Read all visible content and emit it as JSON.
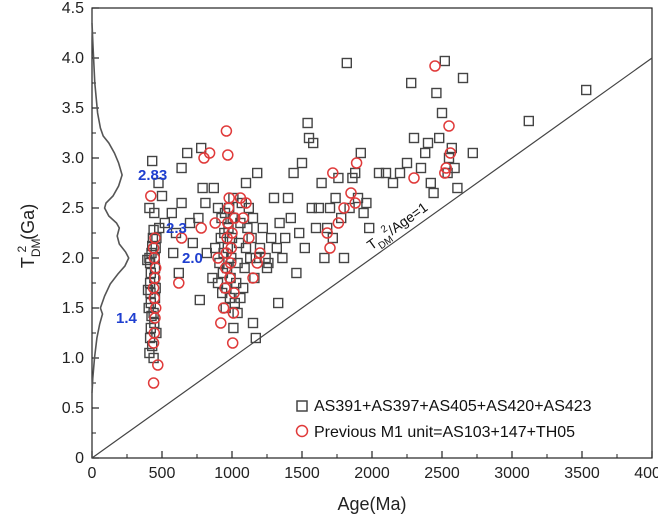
{
  "chart_data": {
    "type": "scatter",
    "xlabel": "Age(Ma)",
    "ylabel_main": "T",
    "ylabel_sub": "DM",
    "ylabel_sup": "2",
    "ylabel_unit": "(Ga)",
    "xlim": [
      0,
      4000
    ],
    "ylim": [
      0,
      4.5
    ],
    "x_ticks": [
      "0",
      "500",
      "1000",
      "1500",
      "2000",
      "2500",
      "3000",
      "3500",
      "4000"
    ],
    "y_ticks": [
      "0",
      "0.5",
      "1.0",
      "1.5",
      "2.0",
      "2.5",
      "3.0",
      "3.5",
      "4.0",
      "4.5"
    ],
    "reference_line": {
      "label_main": "T",
      "label_sub": "DM",
      "label_sup": "2",
      "label_rest": "/Age=1",
      "points": [
        [
          0,
          0
        ],
        [
          4000,
          4.0
        ]
      ]
    },
    "peaks": [
      {
        "label": "2.83",
        "y": 2.83
      },
      {
        "label": "2.3",
        "y": 2.3
      },
      {
        "label": "2.0",
        "y": 2.0
      },
      {
        "label": "1.4",
        "y": 1.4
      }
    ],
    "density_curve": {
      "max_age": 270,
      "points": [
        [
          0,
          4.35
        ],
        [
          8,
          4.1
        ],
        [
          20,
          3.75
        ],
        [
          40,
          3.45
        ],
        [
          60,
          3.3
        ],
        [
          80,
          3.22
        ],
        [
          120,
          3.15
        ],
        [
          160,
          3.05
        ],
        [
          190,
          2.95
        ],
        [
          215,
          2.83
        ],
        [
          190,
          2.72
        ],
        [
          150,
          2.62
        ],
        [
          100,
          2.55
        ],
        [
          90,
          2.5
        ],
        [
          120,
          2.42
        ],
        [
          175,
          2.35
        ],
        [
          195,
          2.3
        ],
        [
          180,
          2.22
        ],
        [
          195,
          2.14
        ],
        [
          240,
          2.06
        ],
        [
          262,
          2.0
        ],
        [
          235,
          1.92
        ],
        [
          185,
          1.84
        ],
        [
          130,
          1.74
        ],
        [
          90,
          1.62
        ],
        [
          60,
          1.5
        ],
        [
          75,
          1.44
        ],
        [
          55,
          1.34
        ],
        [
          35,
          1.2
        ],
        [
          18,
          1.0
        ],
        [
          6,
          0.8
        ],
        [
          0,
          0.65
        ]
      ]
    },
    "series": [
      {
        "name": "AS391+AS397+AS405+AS420+AS423",
        "marker": "square",
        "color": "#444444",
        "points": [
          [
            410,
            1.05
          ],
          [
            415,
            1.2
          ],
          [
            420,
            1.3
          ],
          [
            425,
            1.42
          ],
          [
            420,
            1.55
          ],
          [
            418,
            1.65
          ],
          [
            415,
            1.75
          ],
          [
            420,
            1.85
          ],
          [
            415,
            1.95
          ],
          [
            410,
            2.0
          ],
          [
            425,
            2.05
          ],
          [
            430,
            2.12
          ],
          [
            435,
            2.2
          ],
          [
            440,
            2.28
          ],
          [
            445,
            1.35
          ],
          [
            440,
            1.45
          ],
          [
            450,
            1.6
          ],
          [
            455,
            1.7
          ],
          [
            445,
            1.8
          ],
          [
            450,
            1.9
          ],
          [
            448,
            2.0
          ],
          [
            455,
            2.1
          ],
          [
            460,
            2.2
          ],
          [
            440,
            1.0
          ],
          [
            430,
            1.12
          ],
          [
            460,
            1.25
          ],
          [
            395,
            1.98
          ],
          [
            400,
            1.68
          ],
          [
            405,
            1.5
          ],
          [
            410,
            2.5
          ],
          [
            430,
            2.97
          ],
          [
            445,
            2.45
          ],
          [
            475,
            2.75
          ],
          [
            500,
            2.62
          ],
          [
            480,
            2.3
          ],
          [
            520,
            2.35
          ],
          [
            570,
            2.45
          ],
          [
            600,
            2.25
          ],
          [
            640,
            2.9
          ],
          [
            680,
            3.05
          ],
          [
            640,
            2.55
          ],
          [
            700,
            2.35
          ],
          [
            720,
            2.15
          ],
          [
            760,
            2.4
          ],
          [
            780,
            3.1
          ],
          [
            810,
            2.55
          ],
          [
            790,
            2.7
          ],
          [
            770,
            1.58
          ],
          [
            820,
            2.05
          ],
          [
            860,
            1.8
          ],
          [
            880,
            2.1
          ],
          [
            900,
            1.75
          ],
          [
            910,
            1.95
          ],
          [
            920,
            2.2
          ],
          [
            925,
            2.4
          ],
          [
            930,
            1.65
          ],
          [
            935,
            1.85
          ],
          [
            940,
            2.05
          ],
          [
            945,
            2.25
          ],
          [
            950,
            2.45
          ],
          [
            955,
            1.5
          ],
          [
            960,
            1.7
          ],
          [
            965,
            1.9
          ],
          [
            970,
            2.1
          ],
          [
            975,
            2.3
          ],
          [
            980,
            2.5
          ],
          [
            985,
            1.6
          ],
          [
            990,
            1.8
          ],
          [
            995,
            2.0
          ],
          [
            1000,
            2.2
          ],
          [
            1005,
            2.4
          ],
          [
            1010,
            2.6
          ],
          [
            1020,
            1.55
          ],
          [
            1030,
            1.75
          ],
          [
            1040,
            1.95
          ],
          [
            1050,
            2.15
          ],
          [
            1060,
            2.35
          ],
          [
            1070,
            2.55
          ],
          [
            1080,
            1.7
          ],
          [
            1090,
            1.9
          ],
          [
            1100,
            2.1
          ],
          [
            1110,
            2.3
          ],
          [
            1120,
            2.5
          ],
          [
            1130,
            2.0
          ],
          [
            1140,
            2.2
          ],
          [
            1150,
            2.4
          ],
          [
            1160,
            1.8
          ],
          [
            1170,
            2.0
          ],
          [
            1150,
            1.35
          ],
          [
            1170,
            1.2
          ],
          [
            1180,
            2.85
          ],
          [
            1200,
            2.1
          ],
          [
            1220,
            2.3
          ],
          [
            1240,
            2.0
          ],
          [
            1260,
            1.95
          ],
          [
            1280,
            2.2
          ],
          [
            1300,
            2.6
          ],
          [
            1320,
            2.1
          ],
          [
            1340,
            2.35
          ],
          [
            1360,
            2.0
          ],
          [
            1380,
            2.2
          ],
          [
            1400,
            2.6
          ],
          [
            1420,
            2.4
          ],
          [
            1440,
            2.85
          ],
          [
            1460,
            1.85
          ],
          [
            1480,
            2.25
          ],
          [
            1500,
            2.95
          ],
          [
            1520,
            2.1
          ],
          [
            1540,
            3.35
          ],
          [
            1550,
            3.2
          ],
          [
            1570,
            2.5
          ],
          [
            1580,
            3.15
          ],
          [
            1600,
            2.3
          ],
          [
            1620,
            2.5
          ],
          [
            1640,
            2.75
          ],
          [
            1660,
            2.0
          ],
          [
            1680,
            2.3
          ],
          [
            1700,
            2.5
          ],
          [
            1720,
            2.2
          ],
          [
            1740,
            2.6
          ],
          [
            1760,
            2.8
          ],
          [
            1780,
            2.4
          ],
          [
            1800,
            2.0
          ],
          [
            1820,
            3.95
          ],
          [
            1840,
            2.5
          ],
          [
            1860,
            2.8
          ],
          [
            1880,
            2.85
          ],
          [
            1900,
            2.6
          ],
          [
            1920,
            3.05
          ],
          [
            1940,
            2.45
          ],
          [
            1960,
            2.55
          ],
          [
            1980,
            2.3
          ],
          [
            2050,
            2.85
          ],
          [
            2100,
            2.85
          ],
          [
            2150,
            2.75
          ],
          [
            2200,
            2.85
          ],
          [
            2250,
            2.95
          ],
          [
            2280,
            3.75
          ],
          [
            2300,
            3.2
          ],
          [
            2350,
            2.9
          ],
          [
            2380,
            3.05
          ],
          [
            2400,
            3.15
          ],
          [
            2420,
            2.75
          ],
          [
            2440,
            2.65
          ],
          [
            2460,
            3.65
          ],
          [
            2480,
            3.2
          ],
          [
            2500,
            3.45
          ],
          [
            2520,
            3.97
          ],
          [
            2540,
            2.85
          ],
          [
            2550,
            3.0
          ],
          [
            2570,
            3.1
          ],
          [
            2590,
            2.9
          ],
          [
            2610,
            2.7
          ],
          [
            2650,
            3.8
          ],
          [
            2720,
            3.05
          ],
          [
            3120,
            3.37
          ],
          [
            3530,
            3.68
          ],
          [
            580,
            2.05
          ],
          [
            620,
            1.85
          ],
          [
            1010,
            1.3
          ],
          [
            1040,
            1.45
          ],
          [
            1060,
            1.6
          ],
          [
            870,
            2.7
          ],
          [
            900,
            2.5
          ],
          [
            1250,
            1.9
          ],
          [
            1330,
            1.55
          ],
          [
            1100,
            2.75
          ]
        ]
      },
      {
        "name": "Previous M1 unit=AS103+147+TH05",
        "marker": "circle",
        "color": "#e03a3a",
        "points": [
          [
            440,
            0.75
          ],
          [
            470,
            0.93
          ],
          [
            440,
            1.15
          ],
          [
            445,
            1.25
          ],
          [
            450,
            1.4
          ],
          [
            455,
            1.5
          ],
          [
            445,
            1.6
          ],
          [
            440,
            1.7
          ],
          [
            450,
            1.8
          ],
          [
            455,
            1.9
          ],
          [
            445,
            2.0
          ],
          [
            440,
            2.1
          ],
          [
            450,
            2.2
          ],
          [
            420,
            2.62
          ],
          [
            640,
            2.2
          ],
          [
            620,
            1.75
          ],
          [
            780,
            2.3
          ],
          [
            800,
            3.0
          ],
          [
            840,
            3.05
          ],
          [
            880,
            2.35
          ],
          [
            900,
            2.0
          ],
          [
            920,
            1.35
          ],
          [
            940,
            1.5
          ],
          [
            950,
            1.7
          ],
          [
            955,
            1.9
          ],
          [
            960,
            2.05
          ],
          [
            965,
            2.2
          ],
          [
            970,
            2.35
          ],
          [
            975,
            2.5
          ],
          [
            980,
            2.6
          ],
          [
            985,
            1.8
          ],
          [
            990,
            1.95
          ],
          [
            995,
            2.1
          ],
          [
            1000,
            2.25
          ],
          [
            1005,
            1.15
          ],
          [
            1010,
            1.45
          ],
          [
            1015,
            1.65
          ],
          [
            1020,
            2.4
          ],
          [
            960,
            3.27
          ],
          [
            970,
            3.03
          ],
          [
            1060,
            2.6
          ],
          [
            1080,
            2.4
          ],
          [
            1100,
            2.55
          ],
          [
            1120,
            2.2
          ],
          [
            1180,
            1.95
          ],
          [
            1200,
            2.05
          ],
          [
            1150,
            1.8
          ],
          [
            1680,
            2.25
          ],
          [
            1700,
            2.1
          ],
          [
            1720,
            2.85
          ],
          [
            1760,
            2.35
          ],
          [
            1800,
            2.5
          ],
          [
            1850,
            2.65
          ],
          [
            1880,
            2.55
          ],
          [
            1890,
            2.95
          ],
          [
            2300,
            2.8
          ],
          [
            2450,
            3.92
          ],
          [
            2520,
            2.85
          ],
          [
            2530,
            2.9
          ],
          [
            2550,
            3.32
          ],
          [
            2560,
            3.05
          ]
        ]
      }
    ],
    "legend": {
      "placement": "bottom-right"
    }
  }
}
